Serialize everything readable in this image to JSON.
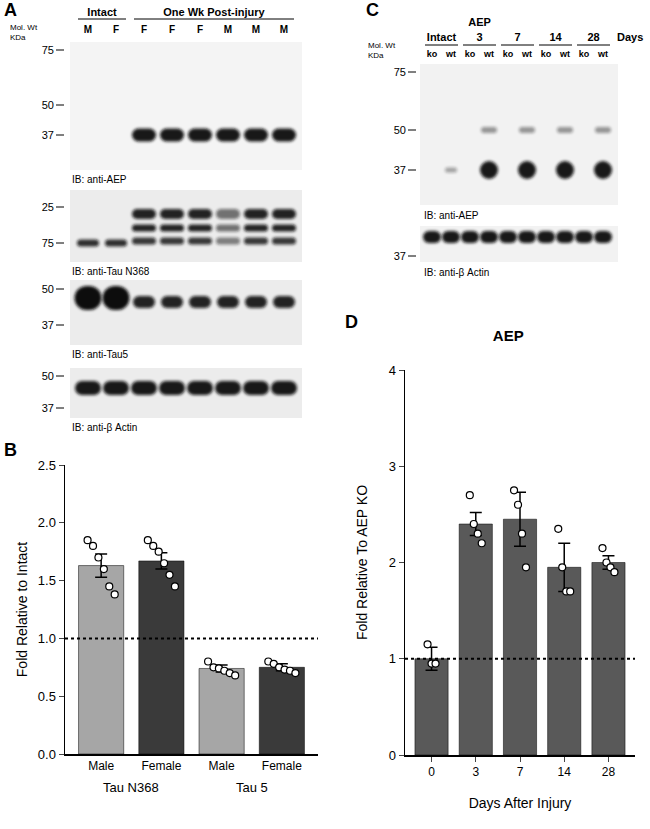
{
  "panel_labels": [
    "A",
    "B",
    "C",
    "D"
  ],
  "blots": [
    {
      "panel": "A",
      "mw_label": [
        "Mol. Wt",
        "KDa"
      ],
      "groups": [
        {
          "label": "Intact",
          "lanes": [
            0,
            1
          ]
        },
        {
          "label": "One Wk Post-injury",
          "lanes": [
            2,
            7
          ]
        }
      ],
      "lanes": [
        "M",
        "F",
        "F",
        "F",
        "F",
        "M",
        "M",
        "M"
      ],
      "panels": [
        {
          "label": "IB: anti-AEP",
          "markers": [
            75,
            50,
            37
          ]
        },
        {
          "label": "IB: anti-Tau N368",
          "markers": [
            25,
            75
          ]
        },
        {
          "label": "IB: anti-Tau5",
          "markers": [
            50,
            37
          ]
        },
        {
          "label": "IB: anti-β Actin",
          "markers": [
            50,
            37
          ]
        }
      ]
    },
    {
      "panel": "C",
      "header": "AEP",
      "mw_label": [
        "Mol. Wt",
        "KDa"
      ],
      "lane_groups": [
        "Intact",
        "3",
        "7",
        "14",
        "28"
      ],
      "unit": "Days",
      "lanes": [
        "ko",
        "wt",
        "ko",
        "wt",
        "ko",
        "wt",
        "ko",
        "wt",
        "ko",
        "wt"
      ],
      "panels": [
        {
          "label": "IB: anti-AEP",
          "markers": [
            75,
            50,
            37
          ]
        },
        {
          "label": "IB: anti-β Actin",
          "markers": [
            37
          ]
        }
      ]
    }
  ],
  "chart_data": [
    {
      "panel": "B",
      "type": "bar",
      "categories": [
        "Male",
        "Female",
        "Male",
        "Female"
      ],
      "group_labels": [
        "Tau N368",
        "Tau 5"
      ],
      "values": [
        1.63,
        1.67,
        0.74,
        0.75
      ],
      "errors": [
        0.1,
        0.07,
        0.03,
        0.03
      ],
      "points": [
        [
          1.85,
          1.8,
          1.7,
          1.6,
          1.45,
          1.38
        ],
        [
          1.85,
          1.8,
          1.75,
          1.65,
          1.55,
          1.45
        ],
        [
          0.8,
          0.75,
          0.74,
          0.72,
          0.7,
          0.68
        ],
        [
          0.8,
          0.78,
          0.75,
          0.73,
          0.72,
          0.7
        ]
      ],
      "colors": [
        "#a6a6a6",
        "#3a3a3a",
        "#a6a6a6",
        "#3a3a3a"
      ],
      "y_label": "Fold Relative to Intact",
      "ylim": [
        0,
        2.5
      ],
      "yticks": [
        {
          "value": 0,
          "label": "0.0"
        },
        {
          "value": 0.5,
          "label": "0.5"
        },
        {
          "value": 1,
          "label": "1.0"
        },
        {
          "value": 1.5,
          "label": "1.5"
        },
        {
          "value": 2,
          "label": "2.0"
        },
        {
          "value": 2.5,
          "label": "2.5"
        }
      ],
      "reference_line": 1
    },
    {
      "panel": "D",
      "type": "bar",
      "title": "AEP",
      "categories": [
        "0",
        "3",
        "7",
        "14",
        "28"
      ],
      "values": [
        1.0,
        2.4,
        2.45,
        1.95,
        2.0
      ],
      "errors": [
        0.12,
        0.12,
        0.28,
        0.25,
        0.07
      ],
      "points": [
        [
          1.15,
          0.95,
          0.95
        ],
        [
          2.7,
          2.4,
          2.3,
          2.2
        ],
        [
          2.75,
          2.6,
          2.3,
          1.95
        ],
        [
          2.35,
          1.95,
          1.7,
          1.7
        ],
        [
          2.15,
          2.0,
          1.95,
          1.9
        ]
      ],
      "color": "#595959",
      "x_label": "Days After Injury",
      "y_label": "Fold Relative To AEP KO",
      "ylim": [
        0,
        4
      ],
      "yticks": [
        0,
        1,
        2,
        3,
        4
      ],
      "reference_line": 1
    }
  ]
}
